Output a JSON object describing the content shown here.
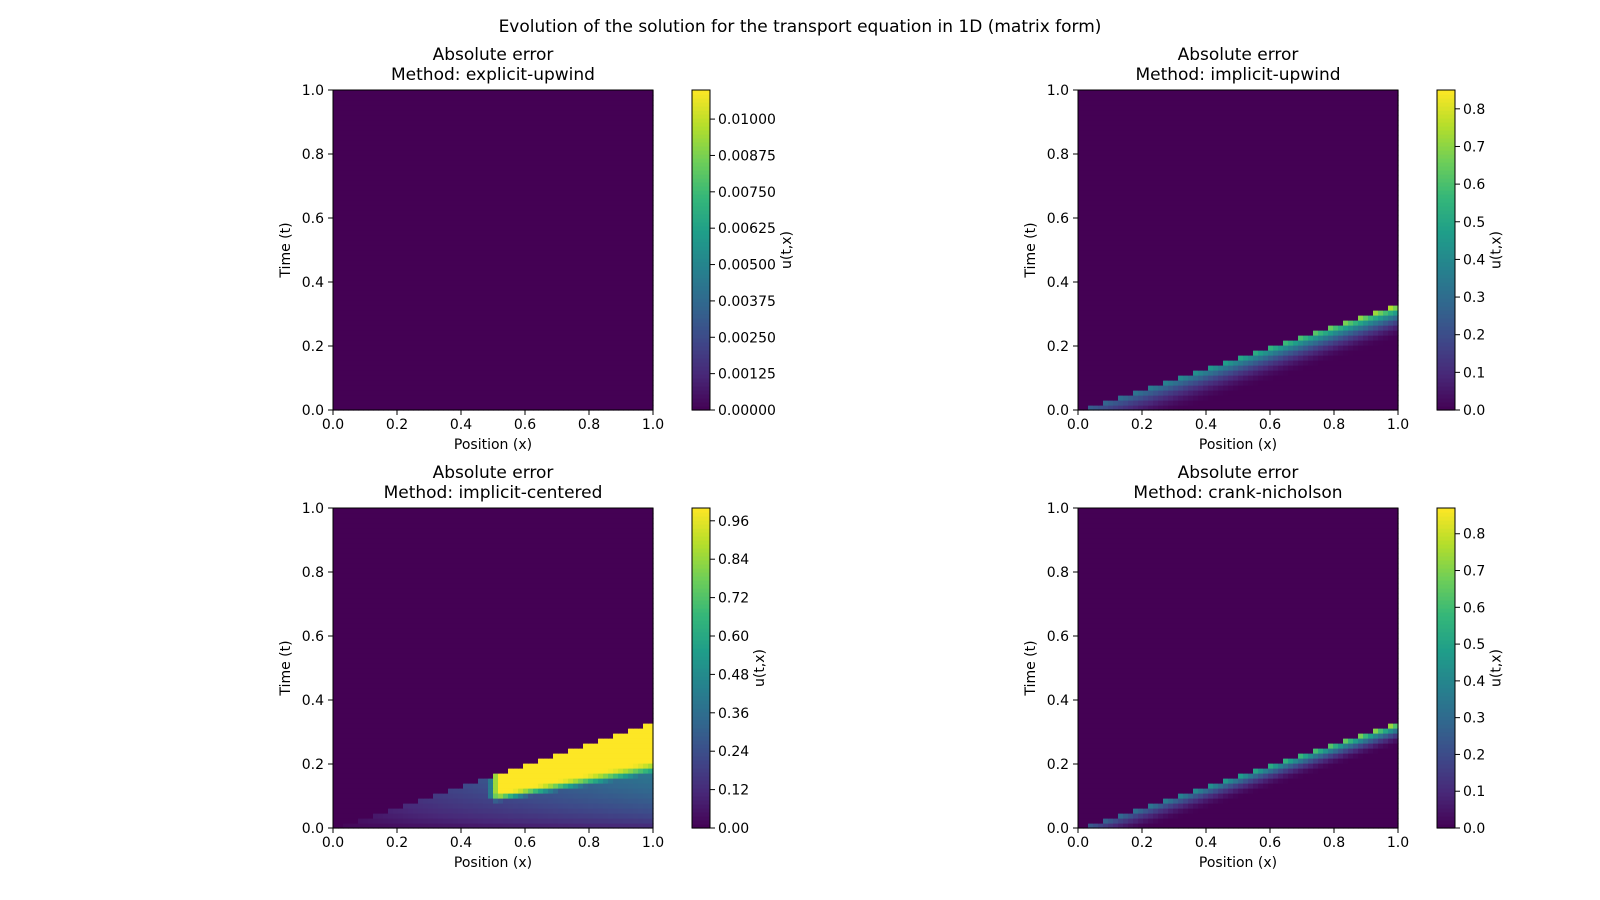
{
  "figure_title": "Evolution of the solution for the transport equation in 1D (matrix form)",
  "colors": {
    "viridis": [
      "#440154",
      "#482878",
      "#3e4989",
      "#31688e",
      "#26828e",
      "#1f9e89",
      "#35b779",
      "#6ece58",
      "#b5de2b",
      "#fde725"
    ]
  },
  "chart_data": [
    {
      "type": "heatmap",
      "title": "Absolute error",
      "subtitle": "Method: explicit-upwind",
      "xlabel": "Position (x)",
      "ylabel": "Time (t)",
      "xlim": [
        0,
        1
      ],
      "ylim": [
        0,
        1
      ],
      "xticks": [
        "0.0",
        "0.2",
        "0.4",
        "0.6",
        "0.8",
        "1.0"
      ],
      "yticks": [
        "0.0",
        "0.2",
        "0.4",
        "0.6",
        "0.8",
        "1.0"
      ],
      "colorbar": {
        "label": "u(t,x)",
        "range": [
          0,
          0.011
        ],
        "tick_values": [
          0,
          0.00125,
          0.0025,
          0.00375,
          0.005,
          0.00625,
          0.0075,
          0.00875,
          0.01
        ],
        "tick_labels": [
          "0.00000",
          "0.00125",
          "0.00250",
          "0.00375",
          "0.00500",
          "0.00625",
          "0.00750",
          "0.00875",
          "0.01000"
        ]
      },
      "field": {
        "pattern": "zero",
        "max_error": 0.0,
        "front_slope": 0.333
      }
    },
    {
      "type": "heatmap",
      "title": "Absolute error",
      "subtitle": "Method: implicit-upwind",
      "xlabel": "Position (x)",
      "ylabel": "Time (t)",
      "xlim": [
        0,
        1
      ],
      "ylim": [
        0,
        1
      ],
      "xticks": [
        "0.0",
        "0.2",
        "0.4",
        "0.6",
        "0.8",
        "1.0"
      ],
      "yticks": [
        "0.0",
        "0.2",
        "0.4",
        "0.6",
        "0.8",
        "1.0"
      ],
      "colorbar": {
        "label": "u(t,x)",
        "range": [
          0,
          0.85
        ],
        "tick_values": [
          0,
          0.1,
          0.2,
          0.3,
          0.4,
          0.5,
          0.6,
          0.7,
          0.8
        ],
        "tick_labels": [
          "0.0",
          "0.1",
          "0.2",
          "0.3",
          "0.4",
          "0.5",
          "0.6",
          "0.7",
          "0.8"
        ]
      },
      "field": {
        "pattern": "front",
        "max_error": 0.84,
        "front_slope": 0.333,
        "band_width": 0.11
      }
    },
    {
      "type": "heatmap",
      "title": "Absolute error",
      "subtitle": "Method: implicit-centered",
      "xlabel": "Position (x)",
      "ylabel": "Time (t)",
      "xlim": [
        0,
        1
      ],
      "ylim": [
        0,
        1
      ],
      "xticks": [
        "0.0",
        "0.2",
        "0.4",
        "0.6",
        "0.8",
        "1.0"
      ],
      "yticks": [
        "0.0",
        "0.2",
        "0.4",
        "0.6",
        "0.8",
        "1.0"
      ],
      "colorbar": {
        "label": "u(t,x)",
        "range": [
          0,
          1.0
        ],
        "tick_values": [
          0,
          0.12,
          0.24,
          0.36,
          0.48,
          0.6,
          0.72,
          0.84,
          0.96
        ],
        "tick_labels": [
          "0.00",
          "0.12",
          "0.24",
          "0.36",
          "0.48",
          "0.60",
          "0.72",
          "0.84",
          "0.96"
        ]
      },
      "field": {
        "pattern": "wedge",
        "max_error": 1.0,
        "front_slope": 0.333
      }
    },
    {
      "type": "heatmap",
      "title": "Absolute error",
      "subtitle": "Method: crank-nicholson",
      "xlabel": "Position (x)",
      "ylabel": "Time (t)",
      "xlim": [
        0,
        1
      ],
      "ylim": [
        0,
        1
      ],
      "xticks": [
        "0.0",
        "0.2",
        "0.4",
        "0.6",
        "0.8",
        "1.0"
      ],
      "yticks": [
        "0.0",
        "0.2",
        "0.4",
        "0.6",
        "0.8",
        "1.0"
      ],
      "colorbar": {
        "label": "u(t,x)",
        "range": [
          0,
          0.87
        ],
        "tick_values": [
          0,
          0.1,
          0.2,
          0.3,
          0.4,
          0.5,
          0.6,
          0.7,
          0.8
        ],
        "tick_labels": [
          "0.0",
          "0.1",
          "0.2",
          "0.3",
          "0.4",
          "0.5",
          "0.6",
          "0.7",
          "0.8"
        ]
      },
      "field": {
        "pattern": "front",
        "max_error": 0.86,
        "front_slope": 0.333,
        "band_width": 0.075
      }
    }
  ]
}
